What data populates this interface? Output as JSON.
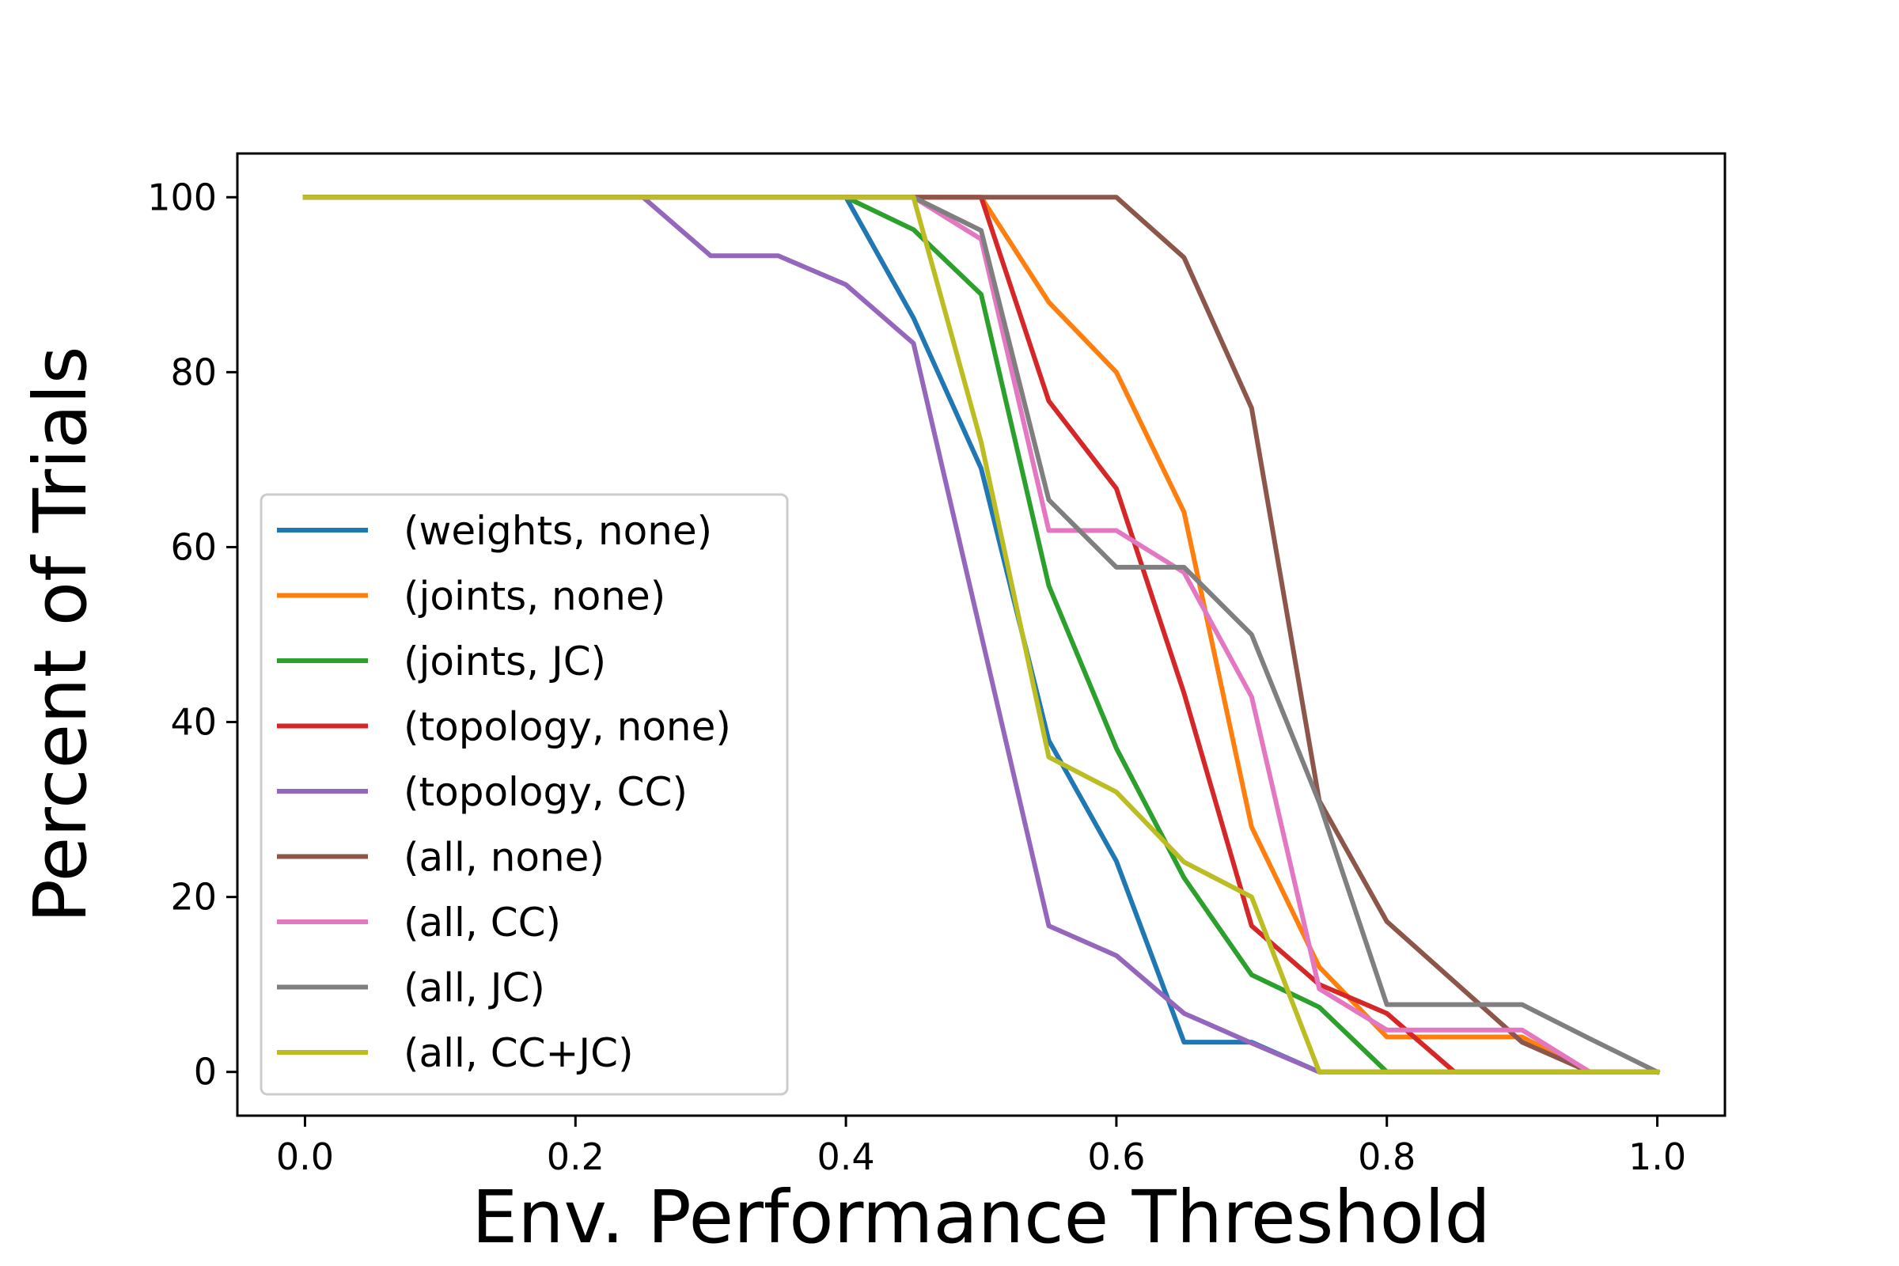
{
  "chart_data": {
    "type": "line",
    "title": "",
    "xlabel": "Env. Performance Threshold",
    "ylabel": "Percent of Trials",
    "xlim": [
      -0.05,
      1.05
    ],
    "ylim": [
      -5,
      105
    ],
    "xticks": [
      0.0,
      0.2,
      0.4,
      0.6,
      0.8,
      1.0
    ],
    "xtick_labels": [
      "0.0",
      "0.2",
      "0.4",
      "0.6",
      "0.8",
      "1.0"
    ],
    "yticks": [
      0,
      20,
      40,
      60,
      80,
      100
    ],
    "ytick_labels": [
      "0",
      "20",
      "40",
      "60",
      "80",
      "100"
    ],
    "grid": false,
    "legend_position": "center-left",
    "x": [
      0.0,
      0.05,
      0.1,
      0.15,
      0.2,
      0.25,
      0.3,
      0.35,
      0.4,
      0.45,
      0.5,
      0.55,
      0.6,
      0.65,
      0.7,
      0.75,
      0.8,
      0.85,
      0.9,
      0.95,
      1.0
    ],
    "series": [
      {
        "name": "(weights, none)",
        "color": "#1f77b4",
        "values": [
          100,
          100,
          100,
          100,
          100,
          100,
          100,
          100,
          100,
          86.2,
          69,
          37.9,
          24.1,
          3.4,
          3.4,
          0,
          0,
          0,
          0,
          0,
          0
        ]
      },
      {
        "name": "(joints, none)",
        "color": "#ff7f0e",
        "values": [
          100,
          100,
          100,
          100,
          100,
          100,
          100,
          100,
          100,
          100,
          100,
          88,
          80,
          64,
          28,
          12,
          4,
          4,
          4,
          0,
          0
        ]
      },
      {
        "name": "(joints, JC)",
        "color": "#2ca02c",
        "values": [
          100,
          100,
          100,
          100,
          100,
          100,
          100,
          100,
          100,
          96.3,
          88.9,
          55.6,
          37,
          22.2,
          11.1,
          7.4,
          0,
          0,
          0,
          0,
          0
        ]
      },
      {
        "name": "(topology, none)",
        "color": "#d62728",
        "values": [
          100,
          100,
          100,
          100,
          100,
          100,
          100,
          100,
          100,
          100,
          100,
          76.7,
          66.7,
          43.3,
          16.7,
          10,
          6.7,
          0,
          0,
          0,
          0
        ]
      },
      {
        "name": "(topology, CC)",
        "color": "#9467bd",
        "values": [
          100,
          100,
          100,
          100,
          100,
          100,
          93.3,
          93.3,
          90,
          83.3,
          50,
          16.7,
          13.3,
          6.7,
          3.3,
          0,
          0,
          0,
          0,
          0,
          0
        ]
      },
      {
        "name": "(all, none)",
        "color": "#8c564b",
        "values": [
          100,
          100,
          100,
          100,
          100,
          100,
          100,
          100,
          100,
          100,
          100,
          100,
          100,
          93.1,
          75.9,
          31,
          17.2,
          10.3,
          3.4,
          0,
          0
        ]
      },
      {
        "name": "(all, CC)",
        "color": "#e377c2",
        "values": [
          100,
          100,
          100,
          100,
          100,
          100,
          100,
          100,
          100,
          100,
          95.2,
          61.9,
          61.9,
          57.1,
          42.9,
          9.5,
          4.8,
          4.8,
          4.8,
          0,
          0
        ]
      },
      {
        "name": "(all, JC)",
        "color": "#7f7f7f",
        "values": [
          100,
          100,
          100,
          100,
          100,
          100,
          100,
          100,
          100,
          100,
          96.2,
          65.4,
          57.7,
          57.7,
          50,
          30.8,
          7.7,
          7.7,
          7.7,
          3.8,
          0
        ]
      },
      {
        "name": "(all, CC+JC)",
        "color": "#bcbd22",
        "values": [
          100,
          100,
          100,
          100,
          100,
          100,
          100,
          100,
          100,
          100,
          72,
          36,
          32,
          24,
          20,
          0,
          0,
          0,
          0,
          0,
          0
        ]
      }
    ]
  }
}
